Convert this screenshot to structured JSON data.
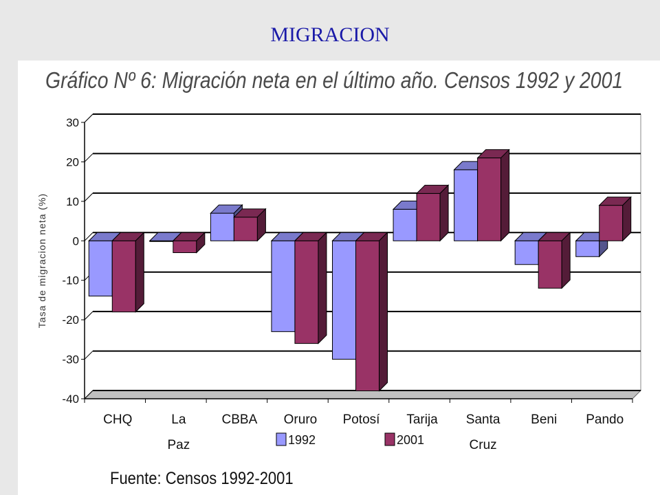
{
  "slide": {
    "title": "MIGRACION"
  },
  "source": "Fuente: Censos 1992-2001",
  "chart_data": {
    "type": "bar",
    "title": "Gráfico Nº  6: Migración neta en el último año. Censos 1992 y 2001",
    "xlabel": "",
    "ylabel": "Tasa de migracion neta (%)",
    "categories": [
      "CHQ",
      "La Paz",
      "CBBA",
      "Oruro",
      "Potosí",
      "Tarija",
      "Santa Cruz",
      "Beni",
      "Pando"
    ],
    "series": [
      {
        "name": "1992",
        "color": "#9999ff",
        "values": [
          -14,
          0,
          7,
          -23,
          -30,
          8,
          18,
          -6,
          -4
        ]
      },
      {
        "name": "2001",
        "color": "#993366",
        "values": [
          -18,
          -3,
          6,
          -26,
          -38,
          12,
          21,
          -12,
          9
        ]
      }
    ],
    "ylim": [
      -40,
      30
    ],
    "yticks": [
      30,
      20,
      10,
      0,
      -10,
      -20,
      -30,
      -40
    ],
    "grid": true,
    "legend": "bottom"
  }
}
